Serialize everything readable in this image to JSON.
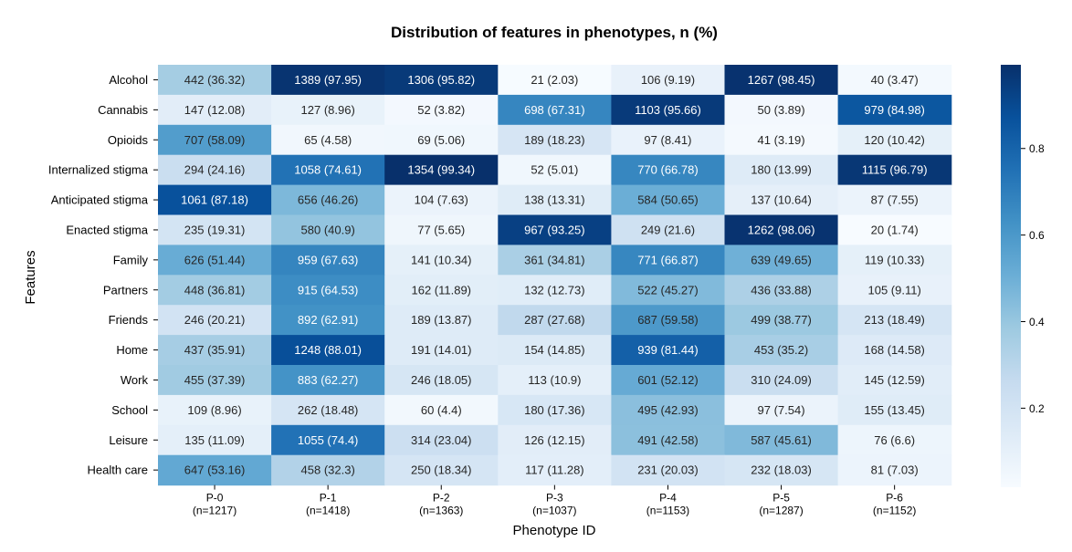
{
  "chart_data": {
    "type": "heatmap",
    "title": "Distribution of features in phenotypes, n (%)",
    "xlabel": "Phenotype ID",
    "ylabel": "Features",
    "columns": [
      {
        "label": "P-0",
        "n_label": "(n=1217)"
      },
      {
        "label": "P-1",
        "n_label": "(n=1418)"
      },
      {
        "label": "P-2",
        "n_label": "(n=1363)"
      },
      {
        "label": "P-3",
        "n_label": "(n=1037)"
      },
      {
        "label": "P-4",
        "n_label": "(n=1153)"
      },
      {
        "label": "P-5",
        "n_label": "(n=1287)"
      },
      {
        "label": "P-6",
        "n_label": "(n=1152)"
      }
    ],
    "rows": [
      "Alcohol",
      "Cannabis",
      "Opioids",
      "Internalized stigma",
      "Anticipated stigma",
      "Enacted stigma",
      "Family",
      "Partners",
      "Friends",
      "Home",
      "Work",
      "School",
      "Leisure",
      "Health care"
    ],
    "counts": [
      [
        442,
        1389,
        1306,
        21,
        106,
        1267,
        40
      ],
      [
        147,
        127,
        52,
        698,
        1103,
        50,
        979
      ],
      [
        707,
        65,
        69,
        189,
        97,
        41,
        120
      ],
      [
        294,
        1058,
        1354,
        52,
        770,
        180,
        1115
      ],
      [
        1061,
        656,
        104,
        138,
        584,
        137,
        87
      ],
      [
        235,
        580,
        77,
        967,
        249,
        1262,
        20
      ],
      [
        626,
        959,
        141,
        361,
        771,
        639,
        119
      ],
      [
        448,
        915,
        162,
        132,
        522,
        436,
        105
      ],
      [
        246,
        892,
        189,
        287,
        687,
        499,
        213
      ],
      [
        437,
        1248,
        191,
        154,
        939,
        453,
        168
      ],
      [
        455,
        883,
        246,
        113,
        601,
        310,
        145
      ],
      [
        109,
        262,
        60,
        180,
        495,
        97,
        155
      ],
      [
        135,
        1055,
        314,
        126,
        491,
        587,
        76
      ],
      [
        647,
        458,
        250,
        117,
        231,
        232,
        81
      ]
    ],
    "percents": [
      [
        "36.32",
        "97.95",
        "95.82",
        "2.03",
        "9.19",
        "98.45",
        "3.47"
      ],
      [
        "12.08",
        "8.96",
        "3.82",
        "67.31",
        "95.66",
        "3.89",
        "84.98"
      ],
      [
        "58.09",
        "4.58",
        "5.06",
        "18.23",
        "8.41",
        "3.19",
        "10.42"
      ],
      [
        "24.16",
        "74.61",
        "99.34",
        "5.01",
        "66.78",
        "13.99",
        "96.79"
      ],
      [
        "87.18",
        "46.26",
        "7.63",
        "13.31",
        "50.65",
        "10.64",
        "7.55"
      ],
      [
        "19.31",
        "40.9",
        "5.65",
        "93.25",
        "21.6",
        "98.06",
        "1.74"
      ],
      [
        "51.44",
        "67.63",
        "10.34",
        "34.81",
        "66.87",
        "49.65",
        "10.33"
      ],
      [
        "36.81",
        "64.53",
        "11.89",
        "12.73",
        "45.27",
        "33.88",
        "9.11"
      ],
      [
        "20.21",
        "62.91",
        "13.87",
        "27.68",
        "59.58",
        "38.77",
        "18.49"
      ],
      [
        "35.91",
        "88.01",
        "14.01",
        "14.85",
        "81.44",
        "35.2",
        "14.58"
      ],
      [
        "37.39",
        "62.27",
        "18.05",
        "10.9",
        "52.12",
        "24.09",
        "12.59"
      ],
      [
        "8.96",
        "18.48",
        "4.4",
        "17.36",
        "42.93",
        "7.54",
        "13.45"
      ],
      [
        "11.09",
        "74.4",
        "23.04",
        "12.15",
        "42.58",
        "45.61",
        "6.6"
      ],
      [
        "53.16",
        "32.3",
        "18.34",
        "11.28",
        "20.03",
        "18.03",
        "7.03"
      ]
    ],
    "colormap": "Blues",
    "color_range": [
      0.0174,
      0.9934
    ],
    "colorbar_ticks": [
      "0.2",
      "0.4",
      "0.6",
      "0.8"
    ],
    "colorbar_tick_values": [
      0.2,
      0.4,
      0.6,
      0.8
    ],
    "grid": false,
    "legend": "colorbar right"
  }
}
